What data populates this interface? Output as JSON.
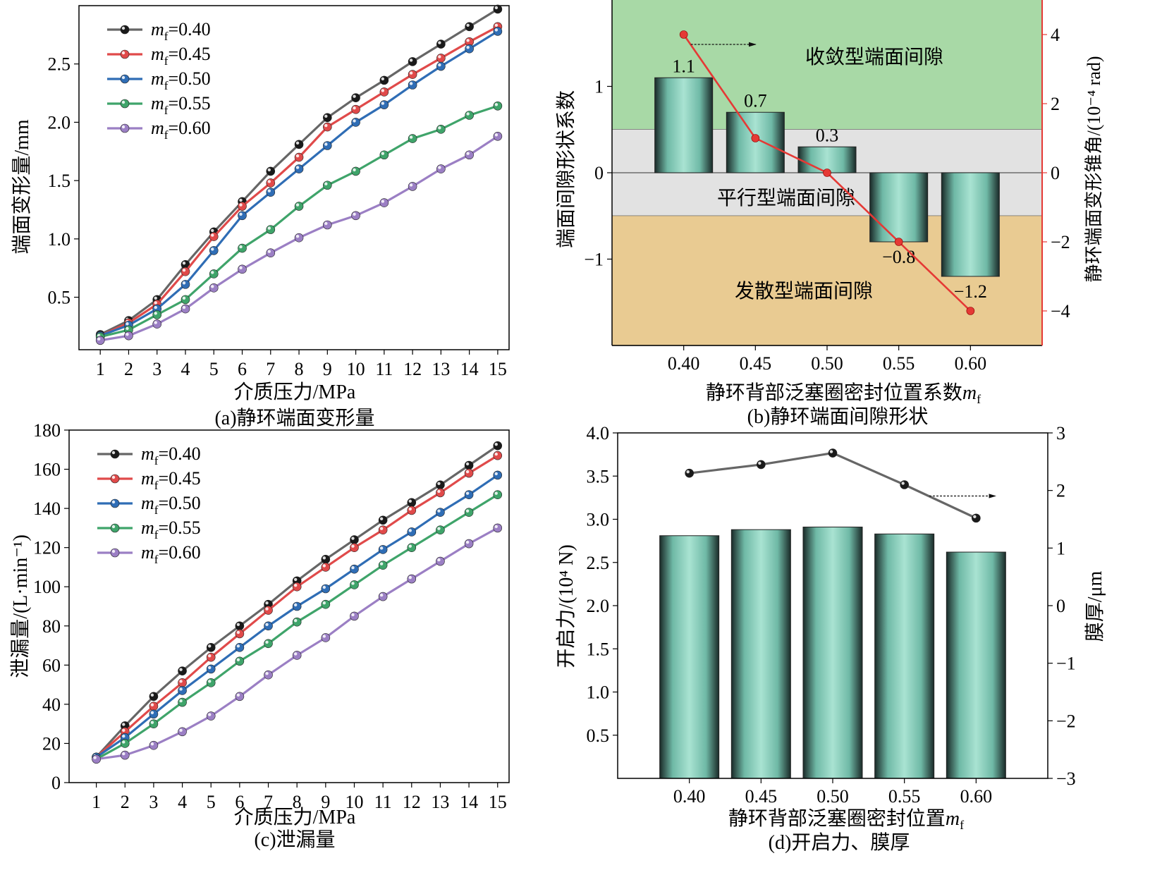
{
  "chart_data": [
    {
      "id": "a",
      "type": "line",
      "caption": "(a)静环端面变形量",
      "xlabel": "介质压力/MPa",
      "ylabel": "端面变形量/mm",
      "x": [
        1,
        2,
        3,
        4,
        5,
        6,
        7,
        8,
        9,
        10,
        11,
        12,
        13,
        14,
        15
      ],
      "xlim": [
        0.25,
        15.4
      ],
      "ylim": [
        0.05,
        3.0
      ],
      "yticks": [
        0.5,
        1.0,
        1.5,
        2.0,
        2.5
      ],
      "ytick_labels": [
        "0.5",
        "1.0",
        "1.5",
        "2.0",
        "2.5"
      ],
      "legend": "top-left",
      "series": [
        {
          "name": "mf=0.40",
          "label_var": "m",
          "label_sub": "f",
          "label_val": "=0.40",
          "color": "#666666",
          "marker": "#1a1a1a",
          "values": [
            0.18,
            0.3,
            0.48,
            0.78,
            1.06,
            1.32,
            1.58,
            1.81,
            2.04,
            2.21,
            2.36,
            2.52,
            2.67,
            2.82,
            2.97
          ]
        },
        {
          "name": "mf=0.45",
          "label_var": "m",
          "label_sub": "f",
          "label_val": "=0.45",
          "color": "#e04a4a",
          "marker": "#e04a4a",
          "values": [
            0.17,
            0.28,
            0.44,
            0.72,
            1.02,
            1.28,
            1.48,
            1.7,
            1.96,
            2.11,
            2.26,
            2.41,
            2.55,
            2.69,
            2.82
          ]
        },
        {
          "name": "mf=0.50",
          "label_var": "m",
          "label_sub": "f",
          "label_val": "=0.50",
          "color": "#2f6db5",
          "marker": "#2f6db5",
          "values": [
            0.17,
            0.26,
            0.4,
            0.61,
            0.9,
            1.2,
            1.4,
            1.6,
            1.8,
            2.0,
            2.15,
            2.32,
            2.48,
            2.63,
            2.78
          ]
        },
        {
          "name": "mf=0.55",
          "label_var": "m",
          "label_sub": "f",
          "label_val": "=0.55",
          "color": "#3fa46a",
          "marker": "#3fa46a",
          "values": [
            0.16,
            0.22,
            0.35,
            0.48,
            0.7,
            0.92,
            1.08,
            1.28,
            1.46,
            1.58,
            1.72,
            1.86,
            1.94,
            2.06,
            2.14
          ]
        },
        {
          "name": "mf=0.60",
          "label_var": "m",
          "label_sub": "f",
          "label_val": "=0.60",
          "color": "#9b7fc4",
          "marker": "#9b7fc4",
          "values": [
            0.13,
            0.17,
            0.27,
            0.4,
            0.58,
            0.74,
            0.88,
            1.01,
            1.12,
            1.2,
            1.31,
            1.45,
            1.6,
            1.72,
            1.88
          ]
        }
      ]
    },
    {
      "id": "b",
      "type": "bar+line",
      "caption": "(b)静环端面间隙形状",
      "xlabel": "静环背部泛塞圈密封位置系数",
      "xlabel_var": "m",
      "xlabel_sub": "f",
      "ylabel_left": "端面间隙形状系数",
      "ylabel_right": "静环端面变形锥角/(10⁻⁴ rad)",
      "categories": [
        "0.40",
        "0.45",
        "0.50",
        "0.55",
        "0.60"
      ],
      "bar_values": [
        1.1,
        0.7,
        0.3,
        -0.8,
        -1.2
      ],
      "bar_labels": [
        "1.1",
        "0.7",
        "0.3",
        "−0.8",
        "−1.2"
      ],
      "line_values": [
        4,
        1,
        0,
        -2,
        -4
      ],
      "ylim_left": [
        -2.0,
        2.0
      ],
      "yticks_left": [
        -1,
        0,
        1
      ],
      "ytick_labels_left": [
        "−1",
        "0",
        "1"
      ],
      "ylim_right": [
        -5,
        5
      ],
      "yticks_right": [
        -4,
        -2,
        0,
        2,
        4
      ],
      "ytick_labels_right": [
        "−4",
        "−2",
        "0",
        "2",
        "4"
      ],
      "regions": [
        {
          "label": "收敛型端面间隙",
          "from": 0.5,
          "to": 2.0,
          "color": "#a8d9a6"
        },
        {
          "label": "平行型端面间隙",
          "from": -0.5,
          "to": 0.5,
          "color": "#e2e2e2"
        },
        {
          "label": "发散型端面间隙",
          "from": -2.0,
          "to": -0.5,
          "color": "#e9cb92"
        }
      ],
      "line_color": "#e53935",
      "right_axis_color": "#e53935"
    },
    {
      "id": "c",
      "type": "line",
      "caption": "(c)泄漏量",
      "xlabel": "介质压力/MPa",
      "ylabel": "泄漏量/(L·min⁻¹)",
      "x": [
        1,
        2,
        3,
        4,
        5,
        6,
        7,
        8,
        9,
        10,
        11,
        12,
        13,
        14,
        15
      ],
      "xlim": [
        0.05,
        15.4
      ],
      "ylim": [
        0,
        180
      ],
      "yticks": [
        0,
        20,
        40,
        60,
        80,
        100,
        120,
        140,
        160,
        180
      ],
      "ytick_labels": [
        "0",
        "20",
        "40",
        "60",
        "80",
        "100",
        "120",
        "140",
        "160",
        "180"
      ],
      "legend": "top-left",
      "series": [
        {
          "name": "mf=0.40",
          "label_var": "m",
          "label_sub": "f",
          "label_val": "=0.40",
          "color": "#666666",
          "marker": "#1a1a1a",
          "values": [
            13,
            29,
            44,
            57,
            69,
            80,
            91,
            103,
            114,
            124,
            134,
            143,
            152,
            162,
            172
          ]
        },
        {
          "name": "mf=0.45",
          "label_var": "m",
          "label_sub": "f",
          "label_val": "=0.45",
          "color": "#e04a4a",
          "marker": "#e04a4a",
          "values": [
            13,
            26,
            39,
            51,
            64,
            76,
            88,
            100,
            110,
            120,
            129,
            139,
            148,
            158,
            167
          ]
        },
        {
          "name": "mf=0.50",
          "label_var": "m",
          "label_sub": "f",
          "label_val": "=0.50",
          "color": "#2f6db5",
          "marker": "#2f6db5",
          "values": [
            13,
            23,
            35,
            47,
            58,
            69,
            80,
            90,
            99,
            109,
            119,
            128,
            138,
            147,
            157
          ]
        },
        {
          "name": "mf=0.55",
          "label_var": "m",
          "label_sub": "f",
          "label_val": "=0.55",
          "color": "#3fa46a",
          "marker": "#3fa46a",
          "values": [
            12,
            20,
            30,
            41,
            51,
            62,
            71,
            82,
            91,
            101,
            111,
            120,
            129,
            138,
            147
          ]
        },
        {
          "name": "mf=0.60",
          "label_var": "m",
          "label_sub": "f",
          "label_val": "=0.60",
          "color": "#9b7fc4",
          "marker": "#9b7fc4",
          "values": [
            12,
            14,
            19,
            26,
            34,
            44,
            55,
            65,
            74,
            85,
            95,
            104,
            113,
            122,
            130
          ]
        }
      ]
    },
    {
      "id": "d",
      "type": "bar+line",
      "caption": "(d)开启力、膜厚",
      "xlabel": "静环背部泛塞圈密封位置",
      "xlabel_var": "m",
      "xlabel_sub": "f",
      "ylabel_left": "开启力/(10⁴ N)",
      "ylabel_right": "膜厚/μm",
      "categories": [
        "0.40",
        "0.45",
        "0.50",
        "0.55",
        "0.60"
      ],
      "bar_values": [
        2.81,
        2.88,
        2.91,
        2.83,
        2.62
      ],
      "line_values": [
        2.3,
        2.45,
        2.65,
        2.1,
        1.52
      ],
      "ylim_left": [
        0.0,
        4.0
      ],
      "yticks_left": [
        0.5,
        1.0,
        1.5,
        2.0,
        2.5,
        3.0,
        3.5,
        4.0
      ],
      "ytick_labels_left": [
        "0.5",
        "1.0",
        "1.5",
        "2.0",
        "2.5",
        "3.0",
        "3.5",
        "4.0"
      ],
      "ylim_right": [
        -3,
        3
      ],
      "yticks_right": [
        -3,
        -2,
        -1,
        0,
        1,
        2,
        3
      ],
      "ytick_labels_right": [
        "−3",
        "−2",
        "−1",
        "0",
        "1",
        "2",
        "3"
      ],
      "line_color": "#666666"
    }
  ]
}
